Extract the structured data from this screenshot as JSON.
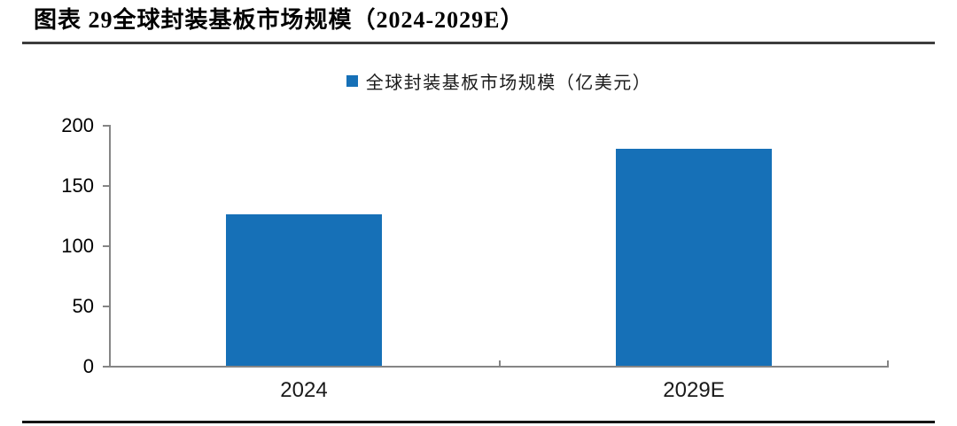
{
  "figure": {
    "title": "图表 29全球封装基板市场规模（2024-2029E）"
  },
  "chart_data": {
    "type": "bar",
    "title": "图表 29全球封装基板市场规模（2024-2029E）",
    "categories": [
      "2024",
      "2029E"
    ],
    "series": [
      {
        "name": "全球封装基板市场规模（亿美元）",
        "values": [
          126,
          180
        ]
      }
    ],
    "xlabel": "",
    "ylabel": "",
    "ylim": [
      0,
      200
    ],
    "yticks": [
      0,
      50,
      100,
      150,
      200
    ],
    "grid": false,
    "legend_position": "top-center"
  },
  "colors": {
    "bar": "#1670B7",
    "axis": "#858585",
    "title_rule": "#3d3d3d",
    "bottom_rule": "#141414"
  }
}
